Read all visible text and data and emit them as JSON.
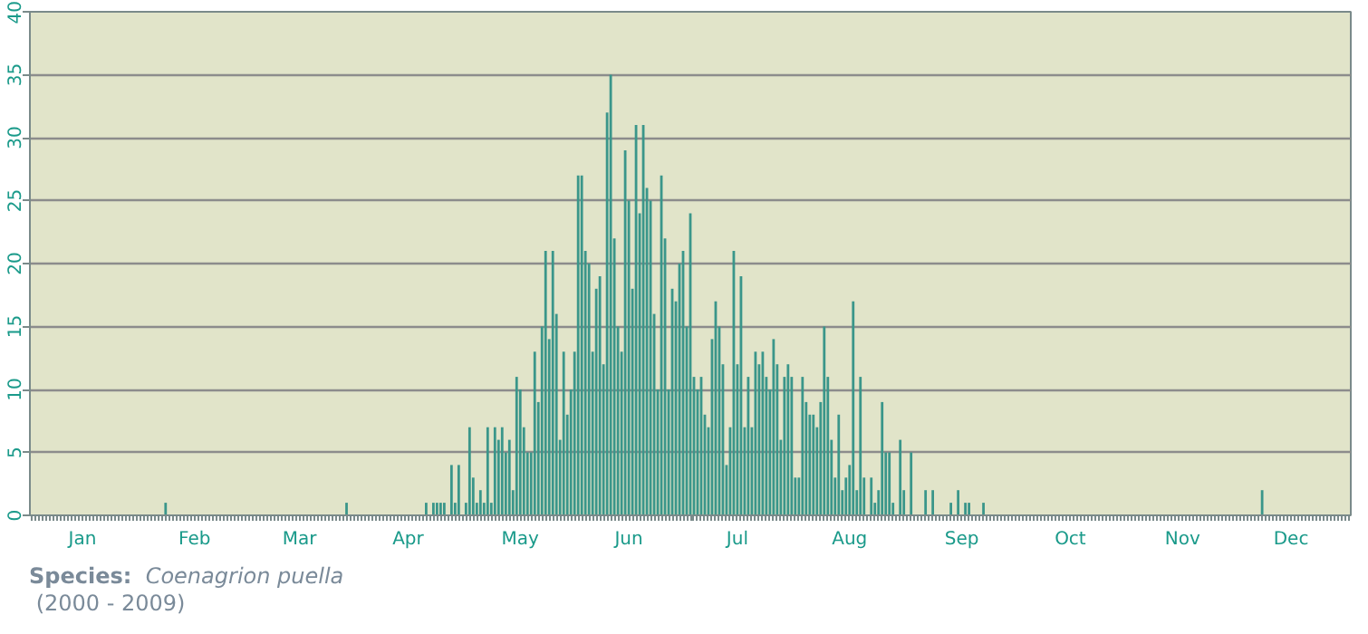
{
  "chart_data": {
    "type": "bar",
    "categories": [
      null,
      null,
      null,
      null,
      null,
      null,
      null,
      null,
      null,
      null,
      null,
      null,
      null,
      null,
      "Jan",
      null,
      null,
      null,
      null,
      null,
      null,
      null,
      null,
      null,
      null,
      null,
      null,
      null,
      null,
      null,
      null,
      null,
      null,
      null,
      null,
      null,
      null,
      null,
      null,
      null,
      null,
      null,
      null,
      null,
      null,
      "Feb",
      null,
      null,
      null,
      null,
      null,
      null,
      null,
      null,
      null,
      null,
      null,
      null,
      null,
      null,
      null,
      null,
      null,
      null,
      null,
      null,
      null,
      null,
      null,
      null,
      null,
      null,
      null,
      null,
      "Mar",
      null,
      null,
      null,
      null,
      null,
      null,
      null,
      null,
      null,
      null,
      null,
      null,
      null,
      null,
      null,
      null,
      null,
      null,
      null,
      null,
      null,
      null,
      null,
      null,
      null,
      null,
      null,
      null,
      null,
      "Apr",
      null,
      null,
      null,
      null,
      null,
      null,
      null,
      null,
      null,
      null,
      null,
      null,
      null,
      null,
      null,
      null,
      null,
      null,
      null,
      null,
      null,
      null,
      null,
      null,
      null,
      null,
      null,
      null,
      null,
      null,
      "May",
      null,
      null,
      null,
      null,
      null,
      null,
      null,
      null,
      null,
      null,
      null,
      null,
      null,
      null,
      null,
      null,
      null,
      null,
      null,
      null,
      null,
      null,
      null,
      null,
      null,
      null,
      null,
      null,
      null,
      "Jun",
      null,
      null,
      null,
      null,
      null,
      null,
      null,
      null,
      null,
      null,
      null,
      null,
      null,
      null,
      null,
      null,
      null,
      null,
      null,
      null,
      null,
      null,
      null,
      null,
      null,
      null,
      null,
      null,
      null,
      "Jul",
      null,
      null,
      null,
      null,
      null,
      null,
      null,
      null,
      null,
      null,
      null,
      null,
      null,
      null,
      null,
      null,
      null,
      null,
      null,
      null,
      null,
      null,
      null,
      null,
      null,
      null,
      null,
      null,
      null,
      null,
      "Aug",
      null,
      null,
      null,
      null,
      null,
      null,
      null,
      null,
      null,
      null,
      null,
      null,
      null,
      null,
      null,
      null,
      null,
      null,
      null,
      null,
      null,
      null,
      null,
      null,
      null,
      null,
      null,
      null,
      null,
      null,
      "Sep",
      null,
      null,
      null,
      null,
      null,
      null,
      null,
      null,
      null,
      null,
      null,
      null,
      null,
      null,
      null,
      null,
      null,
      null,
      null,
      null,
      null,
      null,
      null,
      null,
      null,
      null,
      null,
      null,
      null,
      "Oct",
      null,
      null,
      null,
      null,
      null,
      null,
      null,
      null,
      null,
      null,
      null,
      null,
      null,
      null,
      null,
      null,
      null,
      null,
      null,
      null,
      null,
      null,
      null,
      null,
      null,
      null,
      null,
      null,
      null,
      null,
      "Nov",
      null,
      null,
      null,
      null,
      null,
      null,
      null,
      null,
      null,
      null,
      null,
      null,
      null,
      null,
      null,
      null,
      null,
      null,
      null,
      null,
      null,
      null,
      null,
      null,
      null,
      null,
      null,
      null,
      null,
      "Dec",
      null,
      null,
      null,
      null,
      null,
      null,
      null,
      null,
      null,
      null,
      null,
      null,
      null,
      null,
      null,
      null
    ],
    "values": [
      0,
      0,
      0,
      0,
      0,
      0,
      0,
      0,
      0,
      0,
      0,
      0,
      0,
      0,
      0,
      0,
      0,
      0,
      0,
      0,
      0,
      0,
      0,
      0,
      0,
      0,
      0,
      0,
      0,
      0,
      0,
      0,
      0,
      0,
      0,
      0,
      0,
      1,
      0,
      0,
      0,
      0,
      0,
      0,
      0,
      0,
      0,
      0,
      0,
      0,
      0,
      0,
      0,
      0,
      0,
      0,
      0,
      0,
      0,
      0,
      0,
      0,
      0,
      0,
      0,
      0,
      0,
      0,
      0,
      0,
      0,
      0,
      0,
      0,
      0,
      0,
      0,
      0,
      0,
      0,
      0,
      0,
      0,
      0,
      0,
      0,
      0,
      1,
      0,
      0,
      0,
      0,
      0,
      0,
      0,
      0,
      0,
      0,
      0,
      0,
      0,
      0,
      0,
      0,
      0,
      0,
      0,
      0,
      0,
      1,
      0,
      1,
      1,
      1,
      1,
      0,
      4,
      1,
      4,
      0,
      1,
      7,
      3,
      1,
      2,
      1,
      7,
      1,
      7,
      6,
      7,
      5,
      6,
      2,
      11,
      10,
      7,
      5,
      5,
      13,
      9,
      15,
      21,
      14,
      21,
      16,
      6,
      13,
      8,
      10,
      13,
      27,
      27,
      21,
      20,
      13,
      18,
      19,
      12,
      32,
      35,
      22,
      15,
      13,
      29,
      25,
      18,
      31,
      24,
      31,
      26,
      25,
      16,
      10,
      27,
      22,
      10,
      18,
      17,
      20,
      21,
      15,
      24,
      11,
      10,
      11,
      8,
      7,
      14,
      17,
      15,
      12,
      4,
      7,
      21,
      12,
      19,
      7,
      11,
      7,
      13,
      12,
      13,
      11,
      10,
      14,
      12,
      6,
      11,
      12,
      11,
      3,
      3,
      11,
      9,
      8,
      8,
      7,
      9,
      15,
      11,
      6,
      3,
      8,
      2,
      3,
      4,
      17,
      2,
      11,
      3,
      0,
      3,
      1,
      2,
      9,
      5,
      5,
      1,
      0,
      6,
      2,
      0,
      5,
      0,
      0,
      0,
      2,
      0,
      2,
      0,
      0,
      0,
      0,
      1,
      0,
      2,
      0,
      1,
      1,
      0,
      0,
      0,
      1,
      0,
      0,
      0,
      0,
      0,
      0,
      0,
      0,
      0,
      0,
      0,
      0,
      0,
      0,
      0,
      0,
      0,
      0,
      0,
      0,
      0,
      0,
      0,
      0,
      0,
      0,
      0,
      0,
      0,
      0,
      0,
      0,
      0,
      0,
      0,
      0,
      0,
      0,
      0,
      0,
      0,
      0,
      0,
      0,
      0,
      0,
      0,
      0,
      0,
      0,
      0,
      0,
      0,
      0,
      0,
      0,
      0,
      0,
      0,
      0,
      0,
      0,
      0,
      0,
      0,
      0,
      0,
      0,
      0,
      0,
      0,
      0,
      0,
      0,
      0,
      0,
      2,
      0,
      0,
      0,
      0,
      0,
      0,
      0,
      0,
      0,
      0,
      0,
      0,
      0,
      0,
      0,
      0,
      0,
      0,
      0,
      0,
      0,
      0,
      0,
      0
    ],
    "color": "#3a968a",
    "ylim": [
      0,
      40
    ],
    "yticks": [
      0,
      5,
      10,
      15,
      20,
      25,
      30,
      35,
      40
    ],
    "grid": "y",
    "annotations": [
      "Species:",
      "Coenagrion puella",
      "(2000 - 2009)"
    ]
  }
}
